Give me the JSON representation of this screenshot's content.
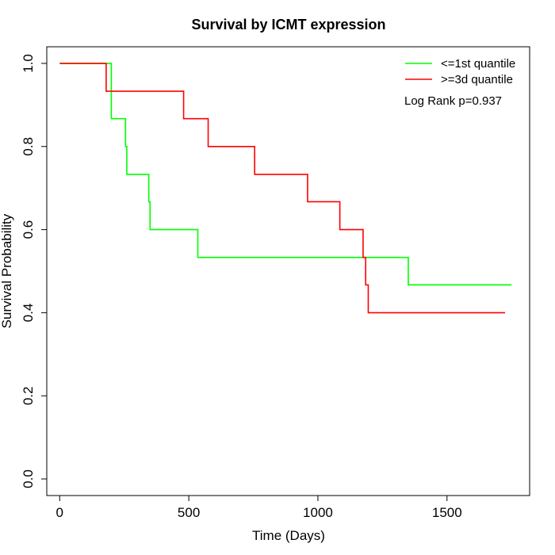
{
  "chart_data": {
    "type": "line",
    "title": "Survival by ICMT expression",
    "xlabel": "Time (Days)",
    "ylabel": "Survival Probability",
    "xlim": [
      -50,
      1820
    ],
    "ylim": [
      -0.04,
      1.04
    ],
    "xticks": [
      0,
      500,
      1000,
      1500
    ],
    "yticks": [
      0.0,
      0.2,
      0.4,
      0.6,
      0.8,
      1.0
    ],
    "xtick_labels": [
      "0",
      "500",
      "1000",
      "1500"
    ],
    "ytick_labels": [
      "0.0",
      "0.2",
      "0.4",
      "0.6",
      "0.8",
      "1.0"
    ],
    "grid": false,
    "legend_position": "top-right",
    "annotation": "Log Rank p=0.937",
    "series": [
      {
        "name": "<=1st quantile",
        "color": "#00ff00",
        "step": true,
        "x": [
          0,
          190,
          200,
          255,
          260,
          345,
          350,
          535,
          1350,
          1750
        ],
        "y": [
          1.0,
          1.0,
          0.867,
          0.8,
          0.733,
          0.667,
          0.6,
          0.533,
          0.467,
          0.467
        ]
      },
      {
        "name": ">=3d quantile",
        "color": "#ff0000",
        "step": true,
        "x": [
          0,
          180,
          480,
          575,
          755,
          960,
          1085,
          1175,
          1185,
          1195,
          1725
        ],
        "y": [
          1.0,
          0.933,
          0.867,
          0.8,
          0.733,
          0.667,
          0.6,
          0.533,
          0.467,
          0.4,
          0.4
        ]
      }
    ]
  }
}
